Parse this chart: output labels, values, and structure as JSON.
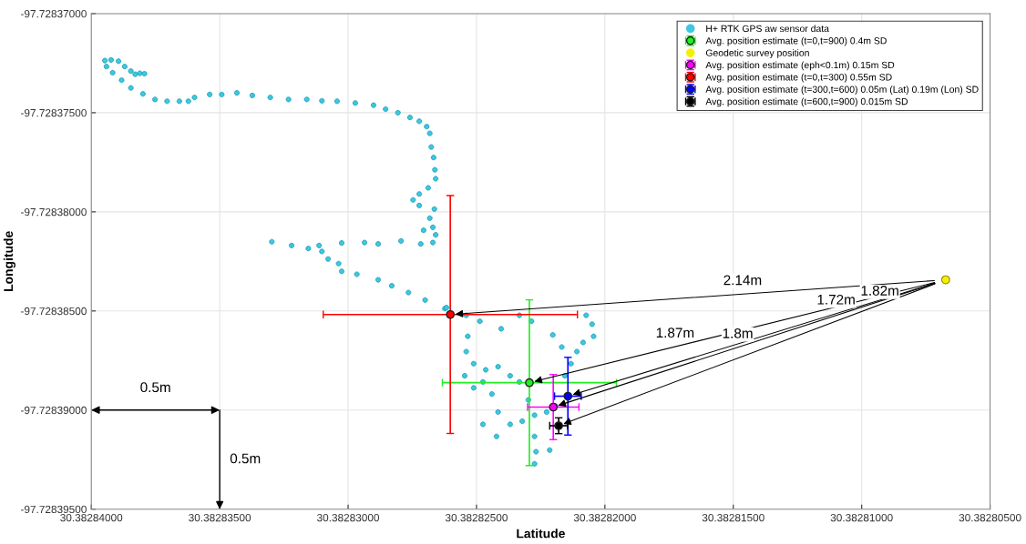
{
  "chart_data": {
    "type": "scatter",
    "xlabel": "Latitude",
    "ylabel": "Longitude",
    "xlim": [
      30.38284,
      30.382805
    ],
    "ylim": [
      -97.728395,
      -97.72837
    ],
    "xticks": [
      {
        "value": 30.38284,
        "label": "30.38284000"
      },
      {
        "value": 30.382835,
        "label": "30.38283500"
      },
      {
        "value": 30.38283,
        "label": "30.38283000"
      },
      {
        "value": 30.382825,
        "label": "30.38282500"
      },
      {
        "value": 30.38282,
        "label": "30.38282000"
      },
      {
        "value": 30.382815,
        "label": "30.38281500"
      },
      {
        "value": 30.38281,
        "label": "30.38281000"
      },
      {
        "value": 30.382805,
        "label": "30.38280500"
      }
    ],
    "yticks": [
      {
        "value": -97.72837,
        "label": "-97.72837000"
      },
      {
        "value": -97.728375,
        "label": "-97.72837500"
      },
      {
        "value": -97.72838,
        "label": "-97.72838000"
      },
      {
        "value": -97.728385,
        "label": "-97.72838500"
      },
      {
        "value": -97.72839,
        "label": "-97.72839000"
      },
      {
        "value": -97.728395,
        "label": "-97.72839500"
      }
    ],
    "grid": true,
    "legend": "top right",
    "marker": "circle",
    "series": [
      {
        "name": "H+ RTK GPS aw sensor data",
        "color": "#3cc8e0",
        "x": [
          30.38283947,
          30.38283923,
          30.38283894,
          30.3828387,
          30.38283846,
          30.38283829,
          30.38283811,
          30.38283793,
          30.38283941,
          30.38283917,
          30.38283882,
          30.38283846,
          30.38283799,
          30.38283752,
          30.38283705,
          30.38283657,
          30.38283622,
          30.38283598,
          30.38283539,
          30.38283492,
          30.38283433,
          30.38283373,
          30.38283303,
          30.38283232,
          30.38283161,
          30.38283102,
          30.38283043,
          30.38282972,
          30.38282901,
          30.38282854,
          30.38282806,
          30.38282759,
          30.38282723,
          30.38282694,
          30.38282682,
          30.38282676,
          30.38282667,
          30.38282662,
          30.38282659,
          30.38282688,
          30.38282723,
          30.38282747,
          30.38282723,
          30.38282664,
          30.38282682,
          30.3828267,
          30.38282706,
          30.38282659,
          30.3828267,
          30.38282717,
          30.38283297,
          30.3828322,
          30.38283155,
          30.38283113,
          30.38283025,
          30.38282936,
          30.38282883,
          30.38282794,
          30.38283102,
          30.38283078,
          30.38283037,
          30.38283025,
          30.38282966,
          30.38282883,
          30.3828283,
          30.38282765,
          30.382827,
          30.38282623,
          30.38282617,
          30.3828254,
          30.38282487,
          30.38282404,
          30.38282333,
          30.38282286,
          30.38282203,
          30.38282073,
          30.3828205,
          30.38282044,
          30.38282085,
          30.38282109,
          30.38282132,
          30.38282156,
          30.38282168,
          30.38282534,
          30.3828254,
          30.38282511,
          30.38282546,
          30.38282511,
          30.38282464,
          30.38282416,
          30.38282369,
          30.38282333,
          30.3828244,
          30.38282416,
          30.38282475,
          30.38282422,
          30.38282369,
          30.38282322,
          30.38282274,
          30.38282227,
          30.38282192,
          30.38282274,
          30.38282268,
          30.38282215,
          30.38282274,
          30.38282298,
          30.38282475
        ],
        "values": [
          -97.72837237,
          -97.72837234,
          -97.7283724,
          -97.72837267,
          -97.7283729,
          -97.72837306,
          -97.72837301,
          -97.72837303,
          -97.72837267,
          -97.72837298,
          -97.72837336,
          -97.72837375,
          -97.72837405,
          -97.72837433,
          -97.72837442,
          -97.72837442,
          -97.72837442,
          -97.72837423,
          -97.72837408,
          -97.72837408,
          -97.728374,
          -97.72837413,
          -97.72837423,
          -97.72837433,
          -97.72837433,
          -97.7283744,
          -97.72837442,
          -97.72837451,
          -97.72837462,
          -97.72837482,
          -97.728375,
          -97.72837524,
          -97.72837543,
          -97.7283757,
          -97.72837604,
          -97.72837673,
          -97.72837726,
          -97.72837788,
          -97.72837833,
          -97.72837879,
          -97.7283791,
          -97.7283794,
          -97.72837968,
          -97.72837986,
          -97.72838032,
          -97.72838078,
          -97.72838093,
          -97.72838116,
          -97.72838155,
          -97.72838162,
          -97.72838151,
          -97.7283817,
          -97.72838185,
          -97.7283817,
          -97.72838157,
          -97.72838155,
          -97.72838162,
          -97.72838147,
          -97.728382,
          -97.72838238,
          -97.72838261,
          -97.728383,
          -97.72838315,
          -97.72838343,
          -97.72838373,
          -97.72838407,
          -97.72838445,
          -97.72838488,
          -97.72838483,
          -97.72838522,
          -97.72838552,
          -97.7283859,
          -97.72838522,
          -97.72838552,
          -97.72838621,
          -97.72838522,
          -97.72838567,
          -97.72838628,
          -97.72838659,
          -97.72838705,
          -97.72838766,
          -97.72838827,
          -97.72838682,
          -97.72838628,
          -97.72838705,
          -97.72838766,
          -97.72838827,
          -97.72838888,
          -97.72838797,
          -97.72838781,
          -97.72838827,
          -97.72838858,
          -97.72838919,
          -97.7283901,
          -97.72839072,
          -97.72839133,
          -97.72839072,
          -97.72839056,
          -97.72839026,
          -97.7283901,
          -97.7283898,
          -97.72839133,
          -97.7283921,
          -97.72839202,
          -97.72839271,
          -97.72838949,
          -97.72838858
        ]
      },
      {
        "name": "Avg. position estimate (t=0,t=900) 0.4m SD",
        "color": "#22ee22",
        "x": [
          30.38282294
        ],
        "values": [
          -97.72838862
        ],
        "errors": [
          4.18e-06
        ],
        "xerrors": [
          3.39e-06
        ]
      },
      {
        "name": "Geodetic survey position",
        "color": "#f2f200",
        "x": [
          30.38280673
        ],
        "values": [
          -97.72838343
        ]
      },
      {
        "name": "Avg. position estimate (eph<0.1m) 0.15m SD",
        "color": "#ff00ff",
        "x": [
          30.38282201
        ],
        "values": [
          -97.72838985
        ],
        "errors": [
          1.64e-06
        ],
        "xerrors": [
          1e-06
        ]
      },
      {
        "name": "Avg. position estimate (t=0,t=300) 0.55m SD",
        "color": "#ff0000",
        "x": [
          30.38282602
        ],
        "values": [
          -97.72838518
        ],
        "errors": [
          6e-06
        ],
        "xerrors": [
          4.95e-06
        ]
      },
      {
        "name": "Avg. position estimate (t=300,t=600) 0.05m (Lat) 0.19m (Lon) SD",
        "color": "#0000ff",
        "x": [
          30.38282144
        ],
        "values": [
          -97.7283893
        ],
        "errors": [
          1.96e-06
        ],
        "xerrors": [
          5.2e-07
        ]
      },
      {
        "name": "Avg. position estimate (t=600,t=900) 0.015m SD",
        "color": "#000000",
        "x": [
          30.3828218
        ],
        "values": [
          -97.72839079
        ],
        "errors": [
          4e-07
        ],
        "xerrors": [
          3.5e-07
        ]
      }
    ],
    "annotations": [
      "1.87m",
      "1.8m",
      "2.14m",
      "1.72m",
      "1.82m",
      "0.5m",
      "0.5m"
    ]
  }
}
